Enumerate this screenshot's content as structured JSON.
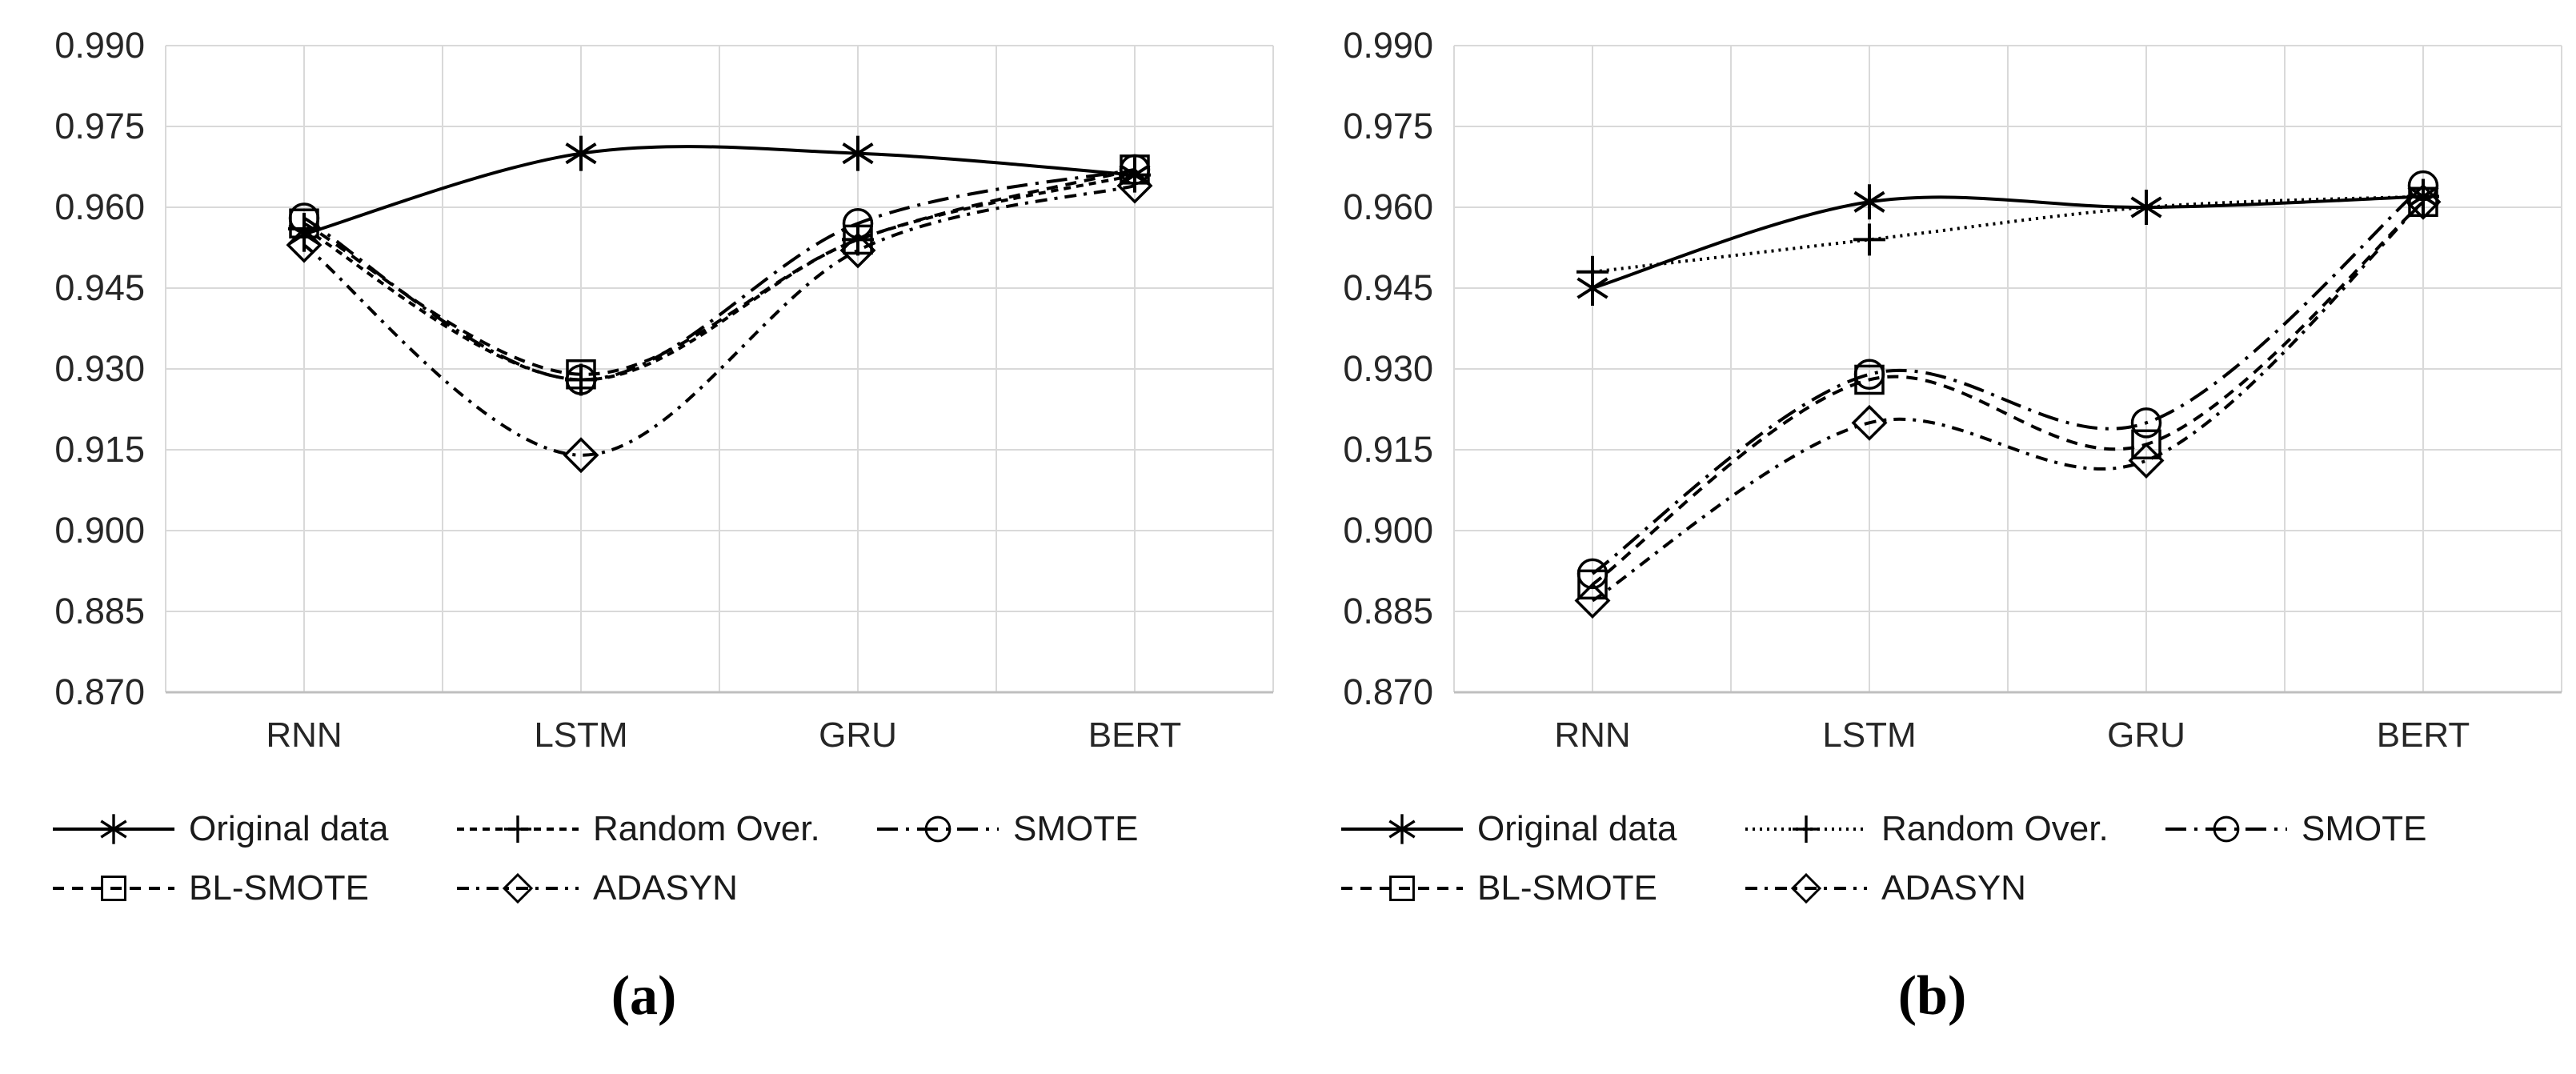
{
  "figure": {
    "background": "#ffffff",
    "line_color": "#000000",
    "gridline_color": "#d9d9d9",
    "axis_color": "#bfbfbf",
    "tick_label_color": "#262626"
  },
  "chart_data": [
    {
      "id": "a",
      "type": "line",
      "title": "",
      "xlabel": "",
      "ylabel": "",
      "caption": "(a)",
      "categories": [
        "RNN",
        "LSTM",
        "GRU",
        "BERT"
      ],
      "ylim": [
        0.87,
        0.99
      ],
      "ytick_labels": [
        "0.990",
        "0.975",
        "0.960",
        "0.945",
        "0.930",
        "0.915",
        "0.900",
        "0.885",
        "0.870"
      ],
      "grid": true,
      "legend_position": "bottom",
      "series": [
        {
          "name": "Original data",
          "marker": "asterisk",
          "line_style": "solid",
          "values": [
            0.955,
            0.97,
            0.97,
            0.966
          ]
        },
        {
          "name": "Random Over.",
          "marker": "plus",
          "line_style": "dash-fine",
          "values": [
            0.956,
            0.928,
            0.954,
            0.966
          ]
        },
        {
          "name": "SMOTE",
          "marker": "circle",
          "line_style": "long-dash-dot",
          "values": [
            0.958,
            0.928,
            0.957,
            0.967
          ]
        },
        {
          "name": "BL-SMOTE",
          "marker": "square",
          "line_style": "dash",
          "values": [
            0.957,
            0.929,
            0.954,
            0.967
          ]
        },
        {
          "name": "ADASYN",
          "marker": "diamond",
          "line_style": "dash-dot",
          "values": [
            0.953,
            0.914,
            0.952,
            0.964
          ]
        }
      ]
    },
    {
      "id": "b",
      "type": "line",
      "title": "",
      "xlabel": "",
      "ylabel": "",
      "caption": "(b)",
      "categories": [
        "RNN",
        "LSTM",
        "GRU",
        "BERT"
      ],
      "ylim": [
        0.87,
        0.99
      ],
      "ytick_labels": [
        "0.990",
        "0.975",
        "0.960",
        "0.945",
        "0.930",
        "0.915",
        "0.900",
        "0.885",
        "0.870"
      ],
      "grid": true,
      "legend_position": "bottom",
      "series": [
        {
          "name": "Original data",
          "marker": "asterisk",
          "line_style": "solid",
          "values": [
            0.945,
            0.961,
            0.96,
            0.962
          ]
        },
        {
          "name": "Random Over.",
          "marker": "plus",
          "line_style": "dotted",
          "values": [
            0.948,
            0.954,
            0.96,
            0.962
          ]
        },
        {
          "name": "SMOTE",
          "marker": "circle",
          "line_style": "long-dash-dot",
          "values": [
            0.892,
            0.929,
            0.92,
            0.964
          ]
        },
        {
          "name": "BL-SMOTE",
          "marker": "square",
          "line_style": "dash",
          "values": [
            0.89,
            0.928,
            0.916,
            0.961
          ]
        },
        {
          "name": "ADASYN",
          "marker": "diamond",
          "line_style": "dash-dot",
          "values": [
            0.887,
            0.92,
            0.913,
            0.961
          ]
        }
      ]
    }
  ]
}
